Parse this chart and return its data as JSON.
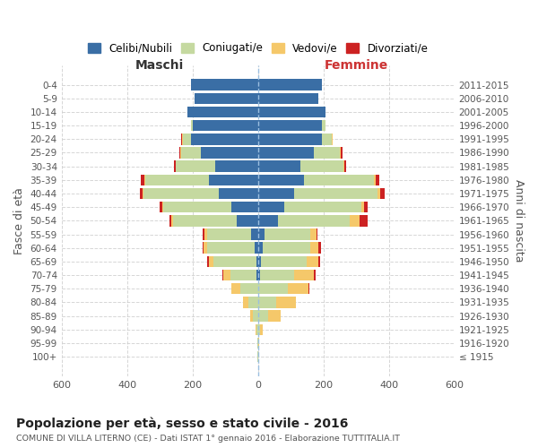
{
  "age_groups": [
    "100+",
    "95-99",
    "90-94",
    "85-89",
    "80-84",
    "75-79",
    "70-74",
    "65-69",
    "60-64",
    "55-59",
    "50-54",
    "45-49",
    "40-44",
    "35-39",
    "30-34",
    "25-29",
    "20-24",
    "15-19",
    "10-14",
    "5-9",
    "0-4"
  ],
  "birth_years": [
    "≤ 1915",
    "1916-1920",
    "1921-1925",
    "1926-1930",
    "1931-1935",
    "1936-1940",
    "1941-1945",
    "1946-1950",
    "1951-1955",
    "1956-1960",
    "1961-1965",
    "1966-1970",
    "1971-1975",
    "1976-1980",
    "1981-1985",
    "1986-1990",
    "1991-1995",
    "1996-2000",
    "2001-2005",
    "2006-2010",
    "2011-2015"
  ],
  "male": {
    "celibe": [
      0,
      0,
      0,
      0,
      0,
      0,
      5,
      5,
      10,
      20,
      65,
      80,
      120,
      150,
      130,
      175,
      205,
      200,
      215,
      195,
      205
    ],
    "coniugato": [
      2,
      3,
      5,
      15,
      30,
      55,
      80,
      130,
      145,
      135,
      195,
      210,
      230,
      195,
      120,
      60,
      25,
      5,
      0,
      0,
      0
    ],
    "vedovo": [
      0,
      0,
      2,
      8,
      15,
      25,
      20,
      15,
      10,
      8,
      5,
      3,
      2,
      2,
      2,
      2,
      2,
      0,
      0,
      0,
      0
    ],
    "divorziato": [
      0,
      0,
      0,
      0,
      2,
      2,
      5,
      5,
      5,
      5,
      5,
      8,
      10,
      10,
      5,
      3,
      2,
      0,
      0,
      0,
      0
    ]
  },
  "female": {
    "nubile": [
      0,
      0,
      0,
      0,
      0,
      0,
      5,
      10,
      15,
      20,
      60,
      80,
      110,
      140,
      130,
      170,
      195,
      195,
      205,
      185,
      195
    ],
    "coniugata": [
      1,
      2,
      5,
      30,
      55,
      90,
      105,
      140,
      145,
      140,
      220,
      235,
      255,
      215,
      130,
      80,
      30,
      10,
      0,
      0,
      0
    ],
    "vedova": [
      0,
      2,
      10,
      40,
      60,
      65,
      60,
      35,
      25,
      18,
      30,
      10,
      8,
      5,
      3,
      3,
      2,
      0,
      0,
      0,
      0
    ],
    "divorziata": [
      0,
      0,
      0,
      0,
      2,
      2,
      5,
      5,
      8,
      5,
      25,
      10,
      15,
      10,
      5,
      5,
      2,
      0,
      0,
      0,
      0
    ]
  },
  "colors": {
    "celibe": "#3A6EA5",
    "coniugato": "#C5D9A0",
    "vedovo": "#F5C86A",
    "divorziato": "#CC2222"
  },
  "title": "Popolazione per età, sesso e stato civile - 2016",
  "subtitle": "COMUNE DI VILLA LITERNO (CE) - Dati ISTAT 1° gennaio 2016 - Elaborazione TUTTITALIA.IT",
  "xlabel_left": "Maschi",
  "xlabel_right": "Femmine",
  "ylabel_left": "Fasce di età",
  "ylabel_right": "Anni di nascita",
  "xlim": 600,
  "bg_color": "#FFFFFF",
  "grid_color": "#CCCCCC",
  "legend_labels": [
    "Celibi/Nubili",
    "Coniugati/e",
    "Vedovi/e",
    "Divorziati/e"
  ]
}
